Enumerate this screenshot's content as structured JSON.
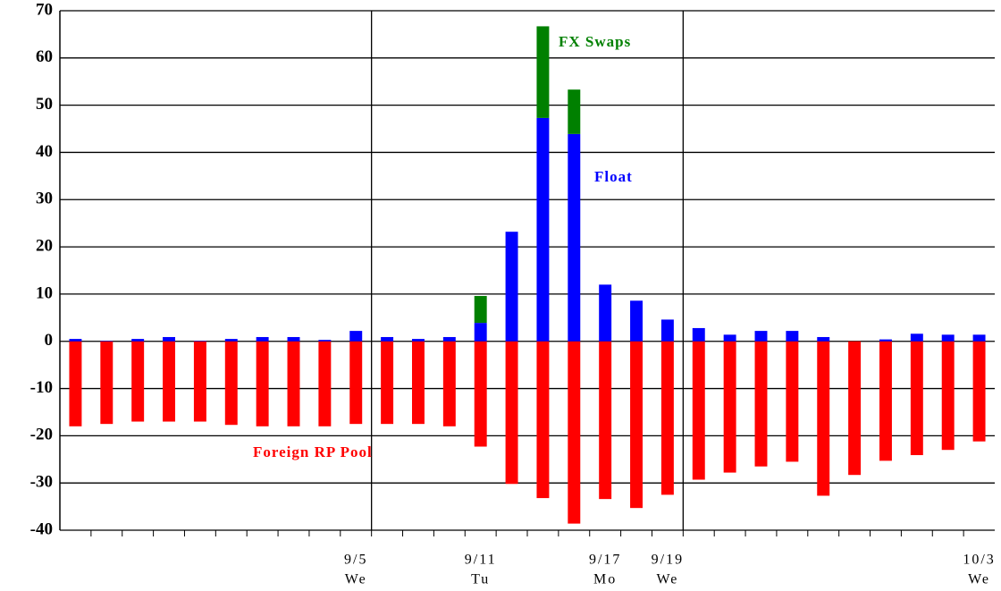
{
  "chart_data": {
    "type": "bar",
    "stacked": true,
    "categories": [
      null,
      null,
      null,
      null,
      null,
      null,
      null,
      null,
      null,
      "9/5",
      null,
      null,
      null,
      "9/11",
      null,
      null,
      null,
      "9/17",
      null,
      "9/19",
      null,
      null,
      null,
      null,
      null,
      null,
      null,
      null,
      null,
      "10/3"
    ],
    "days": [
      null,
      null,
      null,
      null,
      null,
      null,
      null,
      null,
      null,
      "We",
      null,
      null,
      null,
      "Tu",
      null,
      null,
      null,
      "Mo",
      null,
      "We",
      null,
      null,
      null,
      null,
      null,
      null,
      null,
      null,
      null,
      "We"
    ],
    "series": [
      {
        "name": "Foreign RP Pool",
        "color": "#ff0000",
        "values": [
          -18,
          -17.5,
          -17,
          -17,
          -17,
          -17.7,
          -18,
          -18,
          -18,
          -17.5,
          -17.5,
          -17.5,
          -18,
          -22.3,
          -30.2,
          -33.2,
          -38.6,
          -33.4,
          -35.3,
          -32.5,
          -29.3,
          -27.8,
          -26.5,
          -25.5,
          -32.7,
          -28.3,
          -25.3,
          -24.1,
          -23,
          -21.2
        ]
      },
      {
        "name": "Float",
        "color": "#0000ff",
        "values": [
          0.5,
          0.1,
          0.5,
          0.9,
          0.1,
          0.5,
          0.9,
          0.9,
          0.3,
          2.2,
          0.9,
          0.5,
          0.9,
          3.9,
          23.2,
          47.3,
          43.9,
          12,
          8.6,
          4.6,
          2.8,
          1.4,
          2.2,
          2.2,
          0.9,
          0,
          0.4,
          1.6,
          1.4,
          1.4
        ]
      },
      {
        "name": "FX Swaps",
        "color": "#008000",
        "values": [
          0,
          0,
          0,
          0,
          0,
          0,
          0,
          0,
          0,
          0,
          0,
          0,
          0,
          5.7,
          0,
          19.4,
          9.4,
          0,
          0,
          0,
          0,
          0,
          0,
          0,
          0,
          0,
          0,
          0,
          0,
          0
        ]
      }
    ],
    "ylim": [
      -40,
      70
    ],
    "yticks": [
      -40,
      -30,
      -20,
      -10,
      0,
      10,
      20,
      30,
      40,
      50,
      60,
      70
    ],
    "grid": true,
    "xgrid_before": [
      10,
      20
    ]
  }
}
